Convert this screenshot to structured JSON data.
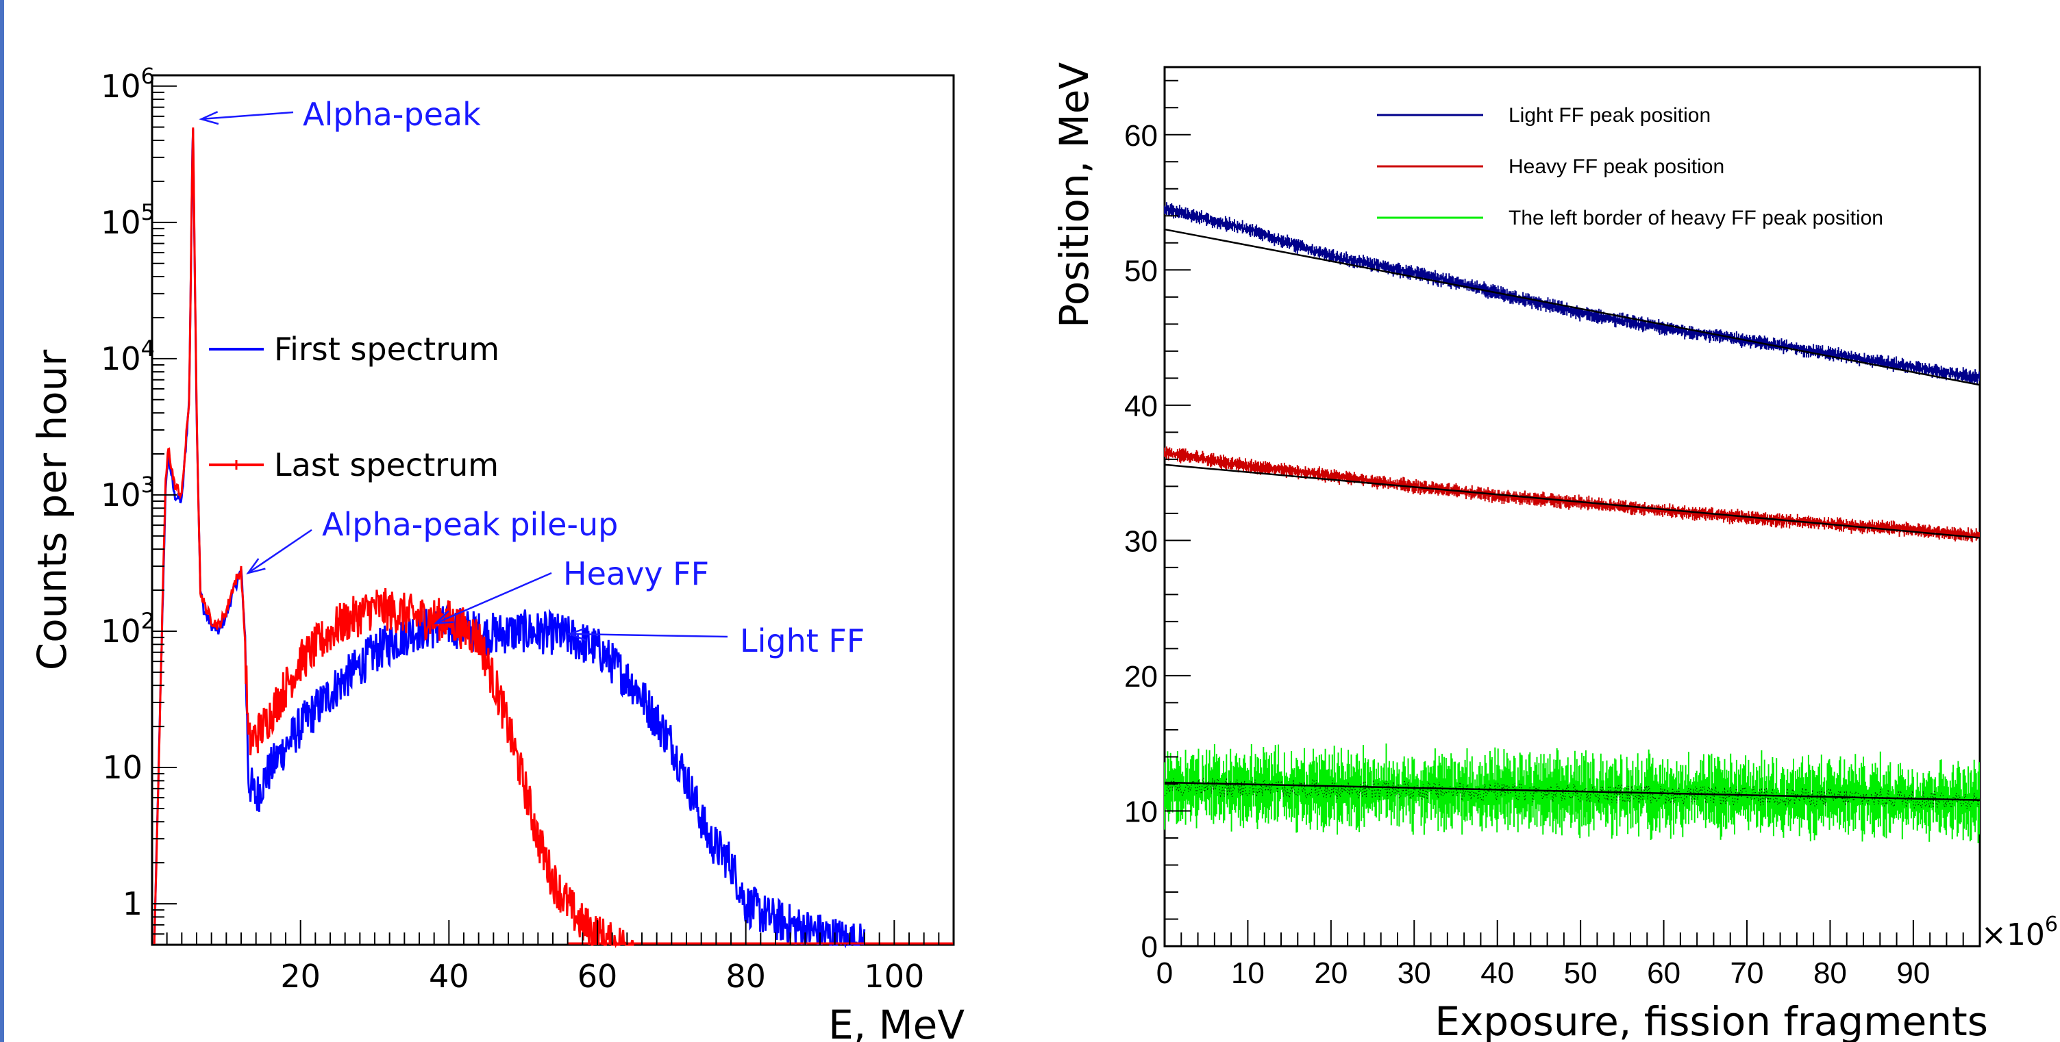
{
  "chart_data": [
    {
      "type": "line",
      "xlabel": "E, MeV",
      "ylabel": "Counts per hour",
      "xlim": [
        0,
        108
      ],
      "ylim": [
        0.5,
        1200000
      ],
      "yscale": "log",
      "grid": false,
      "legend_placement": "center-left (inside)",
      "xticks": [
        "20",
        "40",
        "60",
        "80",
        "100"
      ],
      "yticks": [
        {
          "base": "1",
          "exp": ""
        },
        {
          "base": "10",
          "exp": ""
        },
        {
          "base": "10",
          "exp": "2"
        },
        {
          "base": "10",
          "exp": "3"
        },
        {
          "base": "10",
          "exp": "4"
        },
        {
          "base": "10",
          "exp": "5"
        },
        {
          "base": "10",
          "exp": "6"
        }
      ],
      "series": [
        {
          "name": "First spectrum",
          "color": "#0000ff",
          "x": [
            0.3,
            1.2,
            1.8,
            2.2,
            3,
            4,
            5,
            5.5,
            6,
            6.5,
            7,
            8,
            9,
            10,
            11,
            12,
            12.5,
            13,
            14,
            15,
            17,
            20,
            25,
            30,
            35,
            40,
            45,
            50,
            55,
            60,
            65,
            70,
            73,
            75,
            78,
            80,
            83,
            86,
            90,
            96
          ],
          "y": [
            0.5,
            50,
            1000,
            2000,
            1000,
            900,
            5000,
            600000,
            4000,
            200,
            140,
            110,
            100,
            130,
            200,
            280,
            100,
            8,
            6,
            8,
            12,
            20,
            40,
            70,
            100,
            110,
            95,
            100,
            95,
            75,
            40,
            15,
            6,
            3,
            2,
            1,
            0.8,
            0.7,
            0.6,
            0.5
          ]
        },
        {
          "name": "Last spectrum",
          "color": "#ff0000",
          "x": [
            0.3,
            1.2,
            1.8,
            2.2,
            3,
            4,
            5,
            5.5,
            6,
            6.5,
            7,
            8,
            9,
            10,
            11,
            12,
            12.5,
            13,
            15,
            20,
            25,
            30,
            35,
            40,
            44,
            47,
            50,
            52,
            54,
            56,
            58,
            60,
            62,
            65
          ],
          "y": [
            0.5,
            50,
            1200,
            2200,
            1200,
            1000,
            5000,
            600000,
            4000,
            200,
            160,
            120,
            110,
            140,
            220,
            280,
            90,
            15,
            20,
            60,
            110,
            150,
            130,
            120,
            90,
            30,
            8,
            3,
            1.5,
            1,
            0.7,
            0.6,
            0.5,
            0.5
          ]
        }
      ],
      "annotations": [
        {
          "text": "Alpha-peak",
          "x": 5.5,
          "y": 600000
        },
        {
          "text": "Alpha-peak pile-up",
          "x": 12,
          "y": 280
        },
        {
          "text": "Heavy FF",
          "x": 38,
          "y": 130
        },
        {
          "text": "Light FF",
          "x": 57,
          "y": 100
        }
      ]
    },
    {
      "type": "scatter",
      "xlabel": "Exposure, fission fragments",
      "ylabel": "Position, MeV",
      "xscale_label": "×10",
      "xscale_exp": "6",
      "xlim": [
        0,
        98
      ],
      "ylim": [
        0,
        65
      ],
      "grid": false,
      "legend_placement": "top-right (inside)",
      "xticks": [
        "0",
        "10",
        "20",
        "30",
        "40",
        "50",
        "60",
        "70",
        "80",
        "90"
      ],
      "yticks": [
        "0",
        "10",
        "20",
        "30",
        "40",
        "50",
        "60"
      ],
      "series": [
        {
          "name": "Light FF peak position",
          "color": "#00008b",
          "x": [
            0,
            10,
            20,
            30,
            40,
            50,
            60,
            70,
            80,
            90,
            98
          ],
          "y": [
            54.5,
            53,
            51,
            49.8,
            48.3,
            46.8,
            45.7,
            44.8,
            43.8,
            42.8,
            42
          ],
          "fit": {
            "x": [
              0,
              98
            ],
            "y": [
              53,
              41.5
            ]
          }
        },
        {
          "name": "Heavy FF peak position",
          "color": "#cc0000",
          "x": [
            0,
            10,
            20,
            30,
            40,
            50,
            60,
            70,
            80,
            90,
            98
          ],
          "y": [
            36.5,
            35.5,
            34.8,
            34,
            33.3,
            32.8,
            32.2,
            31.7,
            31.2,
            30.8,
            30.3
          ],
          "fit": {
            "x": [
              0,
              98
            ],
            "y": [
              35.6,
              30.2
            ]
          }
        },
        {
          "name": "The left border of heavy FF peak position",
          "color": "#00ee00",
          "x": [
            0,
            10,
            20,
            30,
            40,
            50,
            60,
            70,
            80,
            90,
            98
          ],
          "y": [
            11.8,
            11.7,
            11.6,
            11.5,
            11.4,
            11.3,
            11.2,
            11.1,
            11,
            10.9,
            10.8
          ],
          "fit": {
            "x": [
              0,
              98
            ],
            "y": [
              12.1,
              10.8
            ]
          }
        }
      ]
    }
  ]
}
